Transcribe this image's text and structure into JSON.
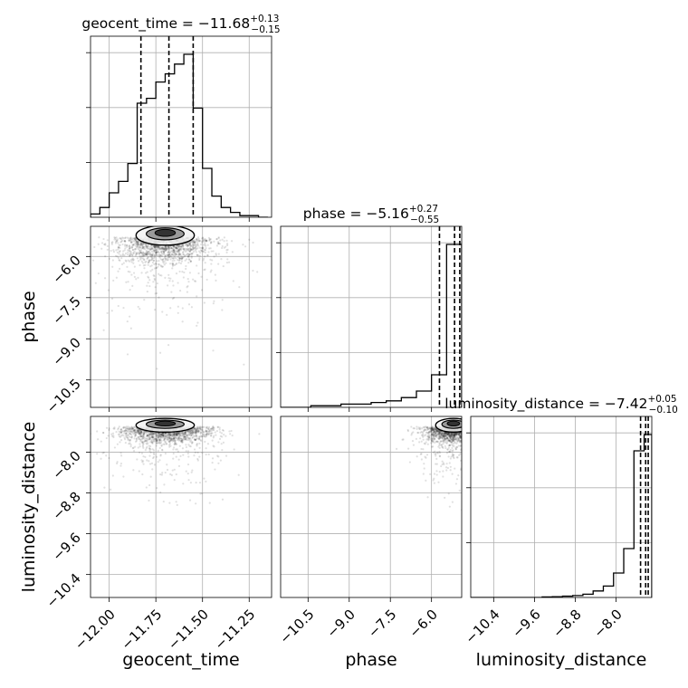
{
  "chart_data": {
    "type": "corner",
    "grid": true,
    "parameters": [
      {
        "name": "geocent_time",
        "axis_label": "geocent_time",
        "median": "−11.68",
        "plus": "+0.13",
        "minus": "−0.15",
        "range": [
          -12.1,
          -11.13
        ],
        "ticks": [
          -12.0,
          -11.75,
          -11.5,
          -11.25
        ],
        "tick_labels": [
          "−12.00",
          "−11.75",
          "−11.50",
          "−11.25"
        ],
        "quantile_lines": [
          -11.83,
          -11.68,
          -11.55
        ]
      },
      {
        "name": "phase",
        "axis_label": "phase",
        "median": "−5.16",
        "plus": "+0.27",
        "minus": "−0.55",
        "range": [
          -11.5,
          -4.9
        ],
        "ticks": [
          -10.5,
          -9.0,
          -7.5,
          -6.0
        ],
        "tick_labels": [
          "−10.5",
          "−9.0",
          "−7.5",
          "−6.0"
        ],
        "quantile_lines": [
          -5.71,
          -5.16,
          -4.97
        ]
      },
      {
        "name": "luminosity_distance",
        "axis_label": "luminosity_distance",
        "median": "−7.42",
        "plus": "+0.05",
        "minus": "−0.10",
        "range": [
          -10.85,
          -7.3
        ],
        "ticks": [
          -10.4,
          -9.6,
          -8.8,
          -8.0
        ],
        "tick_labels": [
          "−10.4",
          "−9.6",
          "−8.8",
          "−8.0"
        ],
        "quantile_lines": [
          -7.52,
          -7.42,
          -7.37
        ]
      }
    ],
    "histograms": [
      {
        "param": "geocent_time",
        "bin_edges": [
          -12.1,
          -12.05,
          -12.0,
          -11.95,
          -11.9,
          -11.85,
          -11.8,
          -11.75,
          -11.7,
          -11.65,
          -11.6,
          -11.55,
          -11.5,
          -11.45,
          -11.4,
          -11.35,
          -11.3,
          -11.25,
          -11.2,
          -11.15
        ],
        "counts": [
          0.02,
          0.06,
          0.15,
          0.22,
          0.33,
          0.7,
          0.73,
          0.83,
          0.88,
          0.94,
          1.0,
          0.67,
          0.3,
          0.13,
          0.06,
          0.03,
          0.01,
          0.01,
          0
        ]
      },
      {
        "param": "phase",
        "bin_edges": [
          -11.5,
          -10.95,
          -10.4,
          -9.85,
          -9.3,
          -8.75,
          -8.2,
          -7.65,
          -7.1,
          -6.55,
          -6.0,
          -5.45,
          -4.9
        ],
        "counts": [
          0.0,
          0.0,
          0.01,
          0.01,
          0.02,
          0.02,
          0.03,
          0.04,
          0.06,
          0.1,
          0.2,
          1.0
        ]
      },
      {
        "param": "luminosity_distance",
        "bin_edges": [
          -10.85,
          -10.65,
          -10.45,
          -10.25,
          -10.05,
          -9.85,
          -9.65,
          -9.45,
          -9.25,
          -9.05,
          -8.85,
          -8.65,
          -8.45,
          -8.25,
          -8.05,
          -7.85,
          -7.65,
          -7.45,
          -7.3
        ],
        "counts": [
          0,
          0,
          0,
          0,
          0,
          0,
          0,
          0.003,
          0.005,
          0.008,
          0.012,
          0.02,
          0.04,
          0.07,
          0.15,
          0.3,
          0.9,
          1.0
        ]
      }
    ],
    "scatter_panels": [
      {
        "x": "geocent_time",
        "y": "phase",
        "density_peak": [
          -11.7,
          -5.3
        ],
        "spread_x": 0.12,
        "spread_y": 0.4
      },
      {
        "x": "geocent_time",
        "y": "luminosity_distance",
        "density_peak": [
          -11.7,
          -7.5
        ],
        "spread_x": 0.12,
        "spread_y": 0.15
      },
      {
        "x": "phase",
        "y": "luminosity_distance",
        "density_peak": [
          -5.2,
          -7.5
        ],
        "spread_x": 0.5,
        "spread_y": 0.15
      }
    ]
  }
}
